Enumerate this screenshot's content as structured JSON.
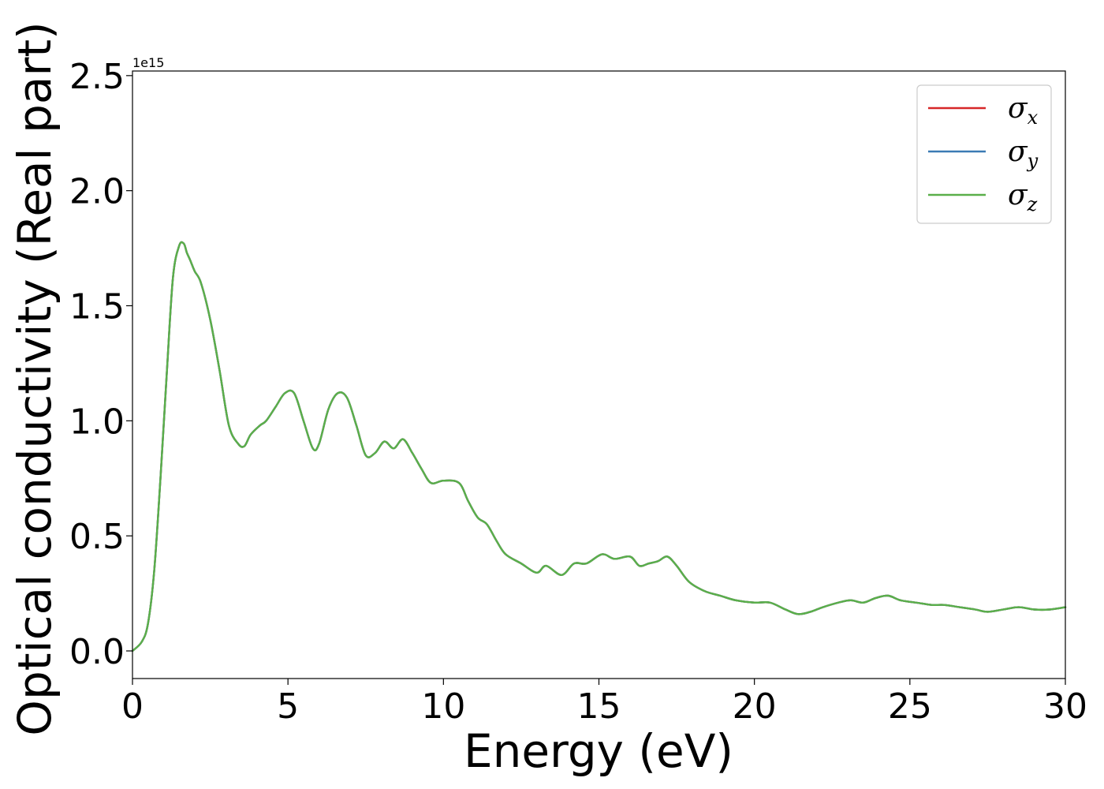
{
  "chart_data": {
    "type": "line",
    "title": "",
    "xlabel": "Energy (eV)",
    "ylabel": "Optical conductivity (Real part)",
    "y_offset_label": "1e15",
    "xlim": [
      0,
      30
    ],
    "ylim": [
      -0.12,
      2.52
    ],
    "x_ticks": [
      0,
      5,
      10,
      15,
      20,
      25,
      30
    ],
    "x_tick_labels": [
      "0",
      "5",
      "10",
      "15",
      "20",
      "25",
      "30"
    ],
    "y_ticks": [
      0.0,
      0.5,
      1.0,
      1.5,
      2.0,
      2.5
    ],
    "y_tick_labels": [
      "0.0",
      "0.5",
      "1.0",
      "1.5",
      "2.0",
      "2.5"
    ],
    "grid": false,
    "legend_position": "top-right",
    "series": [
      {
        "name": "σ",
        "subscript": "x",
        "color": "#d62728",
        "x": [
          0,
          0.3,
          0.5,
          0.7,
          0.9,
          1.1,
          1.3,
          1.5,
          1.65,
          1.75,
          1.85,
          2.0,
          2.2,
          2.5,
          2.8,
          3.1,
          3.4,
          3.6,
          3.8,
          4.1,
          4.3,
          4.6,
          4.9,
          5.2,
          5.5,
          5.8,
          6.0,
          6.3,
          6.6,
          6.9,
          7.2,
          7.5,
          7.8,
          8.1,
          8.4,
          8.7,
          9.0,
          9.3,
          9.6,
          10.0,
          10.5,
          10.8,
          11.1,
          11.4,
          11.7,
          12.0,
          12.5,
          13.0,
          13.3,
          13.8,
          14.2,
          14.6,
          15.1,
          15.5,
          16.0,
          16.3,
          16.6,
          16.9,
          17.2,
          17.5,
          17.9,
          18.4,
          18.9,
          19.4,
          20.0,
          20.5,
          21.0,
          21.4,
          21.8,
          22.2,
          22.7,
          23.1,
          23.5,
          23.9,
          24.3,
          24.7,
          25.2,
          25.7,
          26.1,
          26.6,
          27.1,
          27.5,
          28.0,
          28.5,
          29.0,
          29.5,
          30.0
        ],
        "values": [
          0.0,
          0.04,
          0.12,
          0.35,
          0.75,
          1.2,
          1.62,
          1.76,
          1.77,
          1.73,
          1.7,
          1.65,
          1.6,
          1.44,
          1.22,
          0.98,
          0.9,
          0.89,
          0.94,
          0.98,
          1.0,
          1.06,
          1.12,
          1.12,
          1.0,
          0.88,
          0.9,
          1.05,
          1.12,
          1.1,
          0.98,
          0.85,
          0.86,
          0.91,
          0.88,
          0.92,
          0.86,
          0.79,
          0.73,
          0.74,
          0.73,
          0.65,
          0.58,
          0.55,
          0.48,
          0.42,
          0.38,
          0.34,
          0.37,
          0.33,
          0.38,
          0.38,
          0.42,
          0.4,
          0.41,
          0.37,
          0.38,
          0.39,
          0.41,
          0.37,
          0.3,
          0.26,
          0.24,
          0.22,
          0.21,
          0.21,
          0.18,
          0.16,
          0.17,
          0.19,
          0.21,
          0.22,
          0.21,
          0.23,
          0.24,
          0.22,
          0.21,
          0.2,
          0.2,
          0.19,
          0.18,
          0.17,
          0.18,
          0.19,
          0.18,
          0.18,
          0.19
        ]
      },
      {
        "name": "σ",
        "subscript": "y",
        "color": "#3b7bb4",
        "x": [
          0,
          0.3,
          0.5,
          0.7,
          0.9,
          1.1,
          1.3,
          1.5,
          1.65,
          1.75,
          1.85,
          2.0,
          2.2,
          2.5,
          2.8,
          3.1,
          3.4,
          3.6,
          3.8,
          4.1,
          4.3,
          4.6,
          4.9,
          5.2,
          5.5,
          5.8,
          6.0,
          6.3,
          6.6,
          6.9,
          7.2,
          7.5,
          7.8,
          8.1,
          8.4,
          8.7,
          9.0,
          9.3,
          9.6,
          10.0,
          10.5,
          10.8,
          11.1,
          11.4,
          11.7,
          12.0,
          12.5,
          13.0,
          13.3,
          13.8,
          14.2,
          14.6,
          15.1,
          15.5,
          16.0,
          16.3,
          16.6,
          16.9,
          17.2,
          17.5,
          17.9,
          18.4,
          18.9,
          19.4,
          20.0,
          20.5,
          21.0,
          21.4,
          21.8,
          22.2,
          22.7,
          23.1,
          23.5,
          23.9,
          24.3,
          24.7,
          25.2,
          25.7,
          26.1,
          26.6,
          27.1,
          27.5,
          28.0,
          28.5,
          29.0,
          29.5,
          30.0
        ],
        "values": [
          0.0,
          0.04,
          0.12,
          0.35,
          0.75,
          1.2,
          1.62,
          1.76,
          1.77,
          1.73,
          1.7,
          1.65,
          1.6,
          1.44,
          1.22,
          0.98,
          0.9,
          0.89,
          0.94,
          0.98,
          1.0,
          1.06,
          1.12,
          1.12,
          1.0,
          0.88,
          0.9,
          1.05,
          1.12,
          1.1,
          0.98,
          0.85,
          0.86,
          0.91,
          0.88,
          0.92,
          0.86,
          0.79,
          0.73,
          0.74,
          0.73,
          0.65,
          0.58,
          0.55,
          0.48,
          0.42,
          0.38,
          0.34,
          0.37,
          0.33,
          0.38,
          0.38,
          0.42,
          0.4,
          0.41,
          0.37,
          0.38,
          0.39,
          0.41,
          0.37,
          0.3,
          0.26,
          0.24,
          0.22,
          0.21,
          0.21,
          0.18,
          0.16,
          0.17,
          0.19,
          0.21,
          0.22,
          0.21,
          0.23,
          0.24,
          0.22,
          0.21,
          0.2,
          0.2,
          0.19,
          0.18,
          0.17,
          0.18,
          0.19,
          0.18,
          0.18,
          0.19
        ]
      },
      {
        "name": "σ",
        "subscript": "z",
        "color": "#5aaf4a",
        "x": [
          0,
          0.3,
          0.5,
          0.7,
          0.9,
          1.1,
          1.3,
          1.5,
          1.65,
          1.75,
          1.85,
          2.0,
          2.2,
          2.5,
          2.8,
          3.1,
          3.4,
          3.6,
          3.8,
          4.1,
          4.3,
          4.6,
          4.9,
          5.2,
          5.5,
          5.8,
          6.0,
          6.3,
          6.6,
          6.9,
          7.2,
          7.5,
          7.8,
          8.1,
          8.4,
          8.7,
          9.0,
          9.3,
          9.6,
          10.0,
          10.5,
          10.8,
          11.1,
          11.4,
          11.7,
          12.0,
          12.5,
          13.0,
          13.3,
          13.8,
          14.2,
          14.6,
          15.1,
          15.5,
          16.0,
          16.3,
          16.6,
          16.9,
          17.2,
          17.5,
          17.9,
          18.4,
          18.9,
          19.4,
          20.0,
          20.5,
          21.0,
          21.4,
          21.8,
          22.2,
          22.7,
          23.1,
          23.5,
          23.9,
          24.3,
          24.7,
          25.2,
          25.7,
          26.1,
          26.6,
          27.1,
          27.5,
          28.0,
          28.5,
          29.0,
          29.5,
          30.0
        ],
        "values": [
          0.0,
          0.04,
          0.12,
          0.35,
          0.75,
          1.2,
          1.62,
          1.76,
          1.77,
          1.73,
          1.7,
          1.65,
          1.6,
          1.44,
          1.22,
          0.98,
          0.9,
          0.89,
          0.94,
          0.98,
          1.0,
          1.06,
          1.12,
          1.12,
          1.0,
          0.88,
          0.9,
          1.05,
          1.12,
          1.1,
          0.98,
          0.85,
          0.86,
          0.91,
          0.88,
          0.92,
          0.86,
          0.79,
          0.73,
          0.74,
          0.73,
          0.65,
          0.58,
          0.55,
          0.48,
          0.42,
          0.38,
          0.34,
          0.37,
          0.33,
          0.38,
          0.38,
          0.42,
          0.4,
          0.41,
          0.37,
          0.38,
          0.39,
          0.41,
          0.37,
          0.3,
          0.26,
          0.24,
          0.22,
          0.21,
          0.21,
          0.18,
          0.16,
          0.17,
          0.19,
          0.21,
          0.22,
          0.21,
          0.23,
          0.24,
          0.22,
          0.21,
          0.2,
          0.2,
          0.19,
          0.18,
          0.17,
          0.18,
          0.19,
          0.18,
          0.18,
          0.19
        ]
      }
    ]
  }
}
